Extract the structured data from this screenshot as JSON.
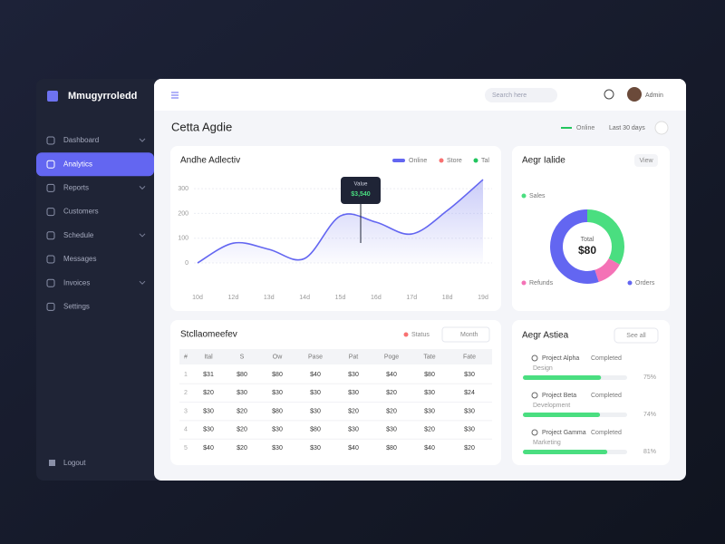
{
  "sidebar": {
    "logo": "Mmugyrroledd",
    "menu": [
      "Dashboard",
      "Analytics",
      "Reports",
      "Customers",
      "Schedule",
      "Messages",
      "Invoices",
      "Settings"
    ],
    "active": 1,
    "footer": "Logout"
  },
  "topbar": {
    "search": "Search here",
    "user": "Admin"
  },
  "page_title": "Cetta Agdie",
  "header_actions": {
    "legend": "Online",
    "range": "Last 30 days"
  },
  "line_card": {
    "title": "Andhe Adlectiv",
    "legend": [
      {
        "name": "Online",
        "color": "#6366f1"
      },
      {
        "name": "Store",
        "color": "#f87171"
      },
      {
        "name": "Tal",
        "color": "#22c55e"
      }
    ],
    "chart": {
      "type": "line",
      "categories": [
        "10d",
        "12d",
        "13d",
        "14d",
        "15d",
        "16d",
        "17d",
        "18d",
        "19d"
      ],
      "values": [
        0,
        80,
        55,
        18,
        190,
        165,
        117,
        212,
        337
      ],
      "color": "#6366f1",
      "ylim": [
        0,
        350
      ],
      "yticks": [
        0,
        100,
        200,
        300
      ],
      "grid": true
    },
    "tooltip": {
      "label": "Value",
      "value": "$3,540"
    }
  },
  "donut_card": {
    "title": "Aegr Ialide",
    "button": "View",
    "center_label": "Total",
    "center_value": "$80",
    "segments": [
      {
        "name": "Sales",
        "color": "#4ade80",
        "value": 33
      },
      {
        "name": "Refunds",
        "color": "#f472b6",
        "value": 12
      },
      {
        "name": "Orders",
        "color": "#6366f1",
        "value": 55
      }
    ]
  },
  "table_card": {
    "title": "Stcllaomeefev",
    "filters": [
      "Status",
      "Month"
    ],
    "columns": [
      "#",
      "Ital",
      "S",
      "Ow",
      "Pase",
      "Pat",
      "Poge",
      "Tate",
      "Fate"
    ],
    "rows": [
      [
        "1",
        "$31",
        "$80",
        "$80",
        "$40",
        "$30",
        "$40",
        "$80",
        "$30"
      ],
      [
        "2",
        "$20",
        "$30",
        "$30",
        "$30",
        "$30",
        "$20",
        "$30",
        "$24"
      ],
      [
        "3",
        "$30",
        "$20",
        "$80",
        "$30",
        "$20",
        "$20",
        "$30",
        "$30"
      ],
      [
        "4",
        "$30",
        "$20",
        "$30",
        "$80",
        "$30",
        "$30",
        "$20",
        "$30"
      ],
      [
        "5",
        "$40",
        "$20",
        "$30",
        "$30",
        "$40",
        "$80",
        "$40",
        "$20"
      ]
    ]
  },
  "progress_card": {
    "title": "Aegr Astiea",
    "button": "See all",
    "items": [
      {
        "label": "Project Alpha",
        "sub": "Design",
        "status": "Completed",
        "value": 75,
        "value_label": "75%"
      },
      {
        "label": "Project Beta",
        "sub": "Development",
        "status": "Completed",
        "value": 74,
        "value_label": "74%"
      },
      {
        "label": "Project Gamma",
        "sub": "Marketing",
        "status": "Completed",
        "value": 81,
        "value_label": "81%"
      }
    ]
  }
}
